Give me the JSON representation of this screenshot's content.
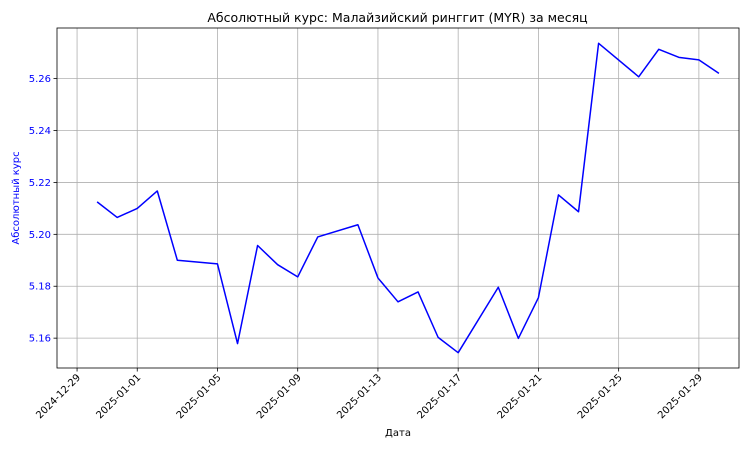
{
  "chart_data": {
    "type": "line",
    "title": "Абсолютный курс: Малайзийский ринггит (MYR) за месяц",
    "xlabel": "Дата",
    "ylabel": "Абсолютный курс",
    "grid": true,
    "line_color": "#0000ff",
    "ylabel_color": "#0000ff",
    "ylim": [
      5.1485,
      5.2795
    ],
    "xlim": [
      "2024-12-28",
      "2025-01-31"
    ],
    "yticks": [
      "5.16",
      "5.18",
      "5.20",
      "5.22",
      "5.24",
      "5.26"
    ],
    "xticks": [
      "2024-12-29",
      "2025-01-01",
      "2025-01-05",
      "2025-01-09",
      "2025-01-13",
      "2025-01-17",
      "2025-01-21",
      "2025-01-25",
      "2025-01-29"
    ],
    "series": [
      {
        "x": [
          "2024-12-30",
          "2024-12-31",
          "2025-01-01",
          "2025-01-02",
          "2025-01-03",
          "2025-01-05",
          "2025-01-06",
          "2025-01-07",
          "2025-01-08",
          "2025-01-09",
          "2025-01-10",
          "2025-01-12",
          "2025-01-13",
          "2025-01-14",
          "2025-01-15",
          "2025-01-16",
          "2025-01-17",
          "2025-01-19",
          "2025-01-20",
          "2025-01-21",
          "2025-01-22",
          "2025-01-23",
          "2025-01-24",
          "2025-01-26",
          "2025-01-27",
          "2025-01-28",
          "2025-01-29",
          "2025-01-30"
        ],
        "values": [
          5.2125,
          5.2065,
          5.21,
          5.2167,
          5.19,
          5.1886,
          5.1579,
          5.1957,
          5.1883,
          5.1836,
          5.199,
          5.2037,
          5.1832,
          5.174,
          5.1778,
          5.1603,
          5.1544,
          5.1796,
          5.1599,
          5.1756,
          5.2152,
          5.2087,
          5.2736,
          5.2607,
          5.2713,
          5.2682,
          5.2672,
          5.262
        ]
      }
    ]
  }
}
